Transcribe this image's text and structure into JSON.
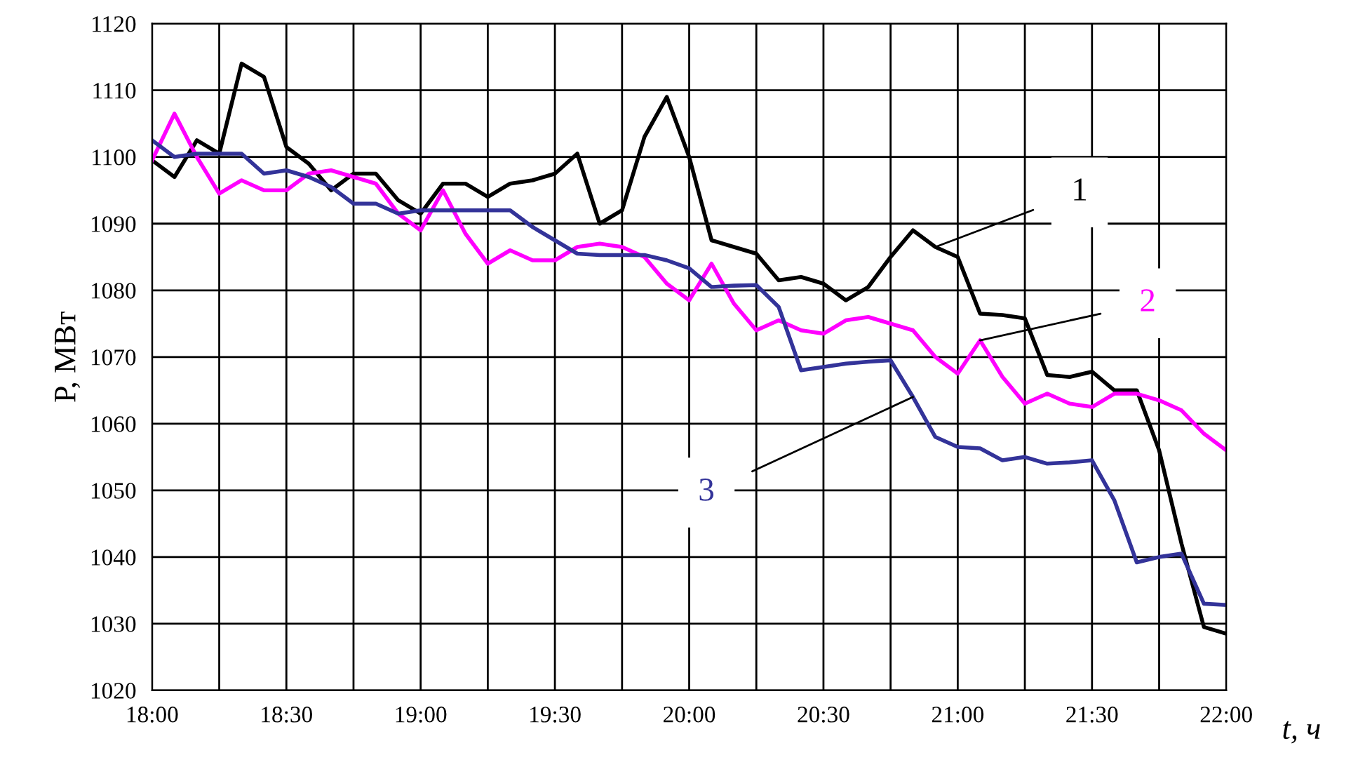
{
  "chart_data": {
    "type": "line",
    "xlabel": "t, ч",
    "ylabel": "P, МВт",
    "x": [
      18,
      18.0833,
      18.1667,
      18.25,
      18.3333,
      18.4167,
      18.5,
      18.5833,
      18.6667,
      18.75,
      18.8333,
      18.9167,
      19,
      19.0833,
      19.1667,
      19.25,
      19.3333,
      19.4167,
      19.5,
      19.5833,
      19.6667,
      19.75,
      19.8333,
      19.9167,
      20,
      20.0833,
      20.1667,
      20.25,
      20.3333,
      20.4167,
      20.5,
      20.5833,
      20.6667,
      20.75,
      20.8333,
      20.9167,
      21,
      21.0833,
      21.1667,
      21.25,
      21.3333,
      21.4167,
      21.5,
      21.5833,
      21.6667,
      21.75,
      21.8333,
      21.9167,
      22
    ],
    "series": [
      {
        "name": "1",
        "color": "#000000",
        "values": [
          1099.5,
          1097,
          1102.5,
          1100.5,
          1114,
          1112,
          1101.5,
          1099,
          1095,
          1097.5,
          1097.5,
          1093.5,
          1091.5,
          1096,
          1096,
          1094,
          1096,
          1096.5,
          1097.5,
          1100.5,
          1090,
          1092,
          1103,
          1109,
          1100,
          1087.5,
          1086.5,
          1085.5,
          1081.5,
          1082,
          1081,
          1078.5,
          1080.5,
          1085,
          1089,
          1086.5,
          1085,
          1076.5,
          1076.3,
          1075.8,
          1067.3,
          1067,
          1067.8,
          1065,
          1065,
          1056,
          1042,
          1029.5,
          1028.5
        ]
      },
      {
        "name": "2",
        "color": "#ff00ff",
        "values": [
          1099.5,
          1106.5,
          1100,
          1094.5,
          1096.5,
          1095,
          1095,
          1097.5,
          1098,
          1097,
          1096,
          1091.5,
          1089,
          1095,
          1088.5,
          1084,
          1086,
          1084.5,
          1084.5,
          1086.5,
          1087,
          1086.5,
          1085,
          1081,
          1078.5,
          1084,
          1078,
          1074,
          1075.5,
          1074,
          1073.5,
          1075.5,
          1076,
          1075,
          1074,
          1070,
          1067.5,
          1072.5,
          1067,
          1063,
          1064.5,
          1063,
          1062.5,
          1064.5,
          1064.5,
          1063.5,
          1062,
          1058.5,
          1056
        ]
      },
      {
        "name": "3",
        "color": "#333399",
        "values": [
          1102.5,
          1100,
          1100.5,
          1100.5,
          1100.5,
          1097.5,
          1098,
          1097,
          1095.5,
          1093,
          1093,
          1091.5,
          1092,
          1092,
          1092,
          1092,
          1092,
          1089.5,
          1087.5,
          1085.5,
          1085.3,
          1085.3,
          1085.3,
          1084.5,
          1083.3,
          1080.5,
          1080.7,
          1080.8,
          1077.5,
          1068,
          1068.5,
          1069,
          1069.3,
          1069.5,
          1064,
          1058,
          1056.5,
          1056.3,
          1054.5,
          1055,
          1054,
          1054.2,
          1054.5,
          1048.5,
          1039.2,
          1040,
          1040.5,
          1033,
          1032.8
        ]
      }
    ],
    "xlim": [
      18,
      22
    ],
    "xticks": [
      {
        "value": 18,
        "label": "18:00"
      },
      {
        "value": 18.25,
        "label": null
      },
      {
        "value": 18.5,
        "label": "18:30"
      },
      {
        "value": 18.75,
        "label": null
      },
      {
        "value": 19,
        "label": "19:00"
      },
      {
        "value": 19.25,
        "label": null
      },
      {
        "value": 19.5,
        "label": "19:30"
      },
      {
        "value": 19.75,
        "label": null
      },
      {
        "value": 20,
        "label": "20:00"
      },
      {
        "value": 20.25,
        "label": null
      },
      {
        "value": 20.5,
        "label": "20:30"
      },
      {
        "value": 20.75,
        "label": null
      },
      {
        "value": 21,
        "label": "21:00"
      },
      {
        "value": 21.25,
        "label": null
      },
      {
        "value": 21.5,
        "label": "21:30"
      },
      {
        "value": 21.75,
        "label": null
      },
      {
        "value": 22,
        "label": "22:00"
      }
    ],
    "ylim": [
      1020,
      1120
    ],
    "yticks": [
      1020,
      1030,
      1040,
      1050,
      1060,
      1070,
      1080,
      1090,
      1100,
      1110,
      1120
    ],
    "grid": true,
    "legend": false,
    "marker": "none",
    "line_style": "solid"
  }
}
